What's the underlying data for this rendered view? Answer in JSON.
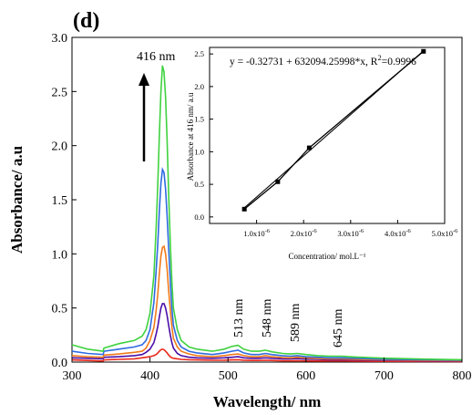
{
  "panel_label": "(d)",
  "chart_data": [
    {
      "type": "line",
      "xlabel": "Wavelength/ nm",
      "ylabel": "Absorbance/ a.u",
      "xlim": [
        300,
        800
      ],
      "ylim": [
        0,
        3.0
      ],
      "x_ticks": [
        300,
        400,
        500,
        600,
        700,
        800
      ],
      "y_ticks": [
        0.0,
        0.5,
        1.0,
        1.5,
        2.0,
        2.5,
        3.0
      ],
      "x_tick_labels": [
        "300",
        "400",
        "500",
        "600",
        "700",
        "800"
      ],
      "y_tick_labels": [
        "0.0",
        "0.5",
        "1.0",
        "1.5",
        "2.0",
        "2.5",
        "3.0"
      ],
      "grid": false,
      "x": [
        300,
        320,
        340,
        341,
        360,
        380,
        390,
        395,
        400,
        405,
        408,
        410,
        412,
        414,
        416,
        418,
        420,
        422,
        424,
        426,
        428,
        430,
        435,
        440,
        450,
        460,
        480,
        495,
        505,
        513,
        520,
        530,
        540,
        548,
        556,
        570,
        580,
        589,
        600,
        615,
        630,
        645,
        660,
        680,
        700,
        750,
        800
      ],
      "series": [
        {
          "color": "#e8281b",
          "values": [
            0.02,
            0.015,
            0.01,
            0.02,
            0.025,
            0.03,
            0.04,
            0.045,
            0.05,
            0.06,
            0.07,
            0.085,
            0.1,
            0.115,
            0.12,
            0.115,
            0.1,
            0.085,
            0.065,
            0.05,
            0.04,
            0.035,
            0.03,
            0.025,
            0.022,
            0.02,
            0.017,
            0.018,
            0.02,
            0.022,
            0.018,
            0.015,
            0.015,
            0.017,
            0.015,
            0.012,
            0.012,
            0.013,
            0.011,
            0.01,
            0.01,
            0.01,
            0.009,
            0.008,
            0.007,
            0.006,
            0.005
          ]
        },
        {
          "color": "#4b0fa8",
          "values": [
            0.04,
            0.035,
            0.03,
            0.045,
            0.05,
            0.06,
            0.07,
            0.09,
            0.12,
            0.18,
            0.26,
            0.33,
            0.42,
            0.5,
            0.54,
            0.54,
            0.5,
            0.43,
            0.34,
            0.25,
            0.18,
            0.13,
            0.08,
            0.06,
            0.045,
            0.04,
            0.035,
            0.04,
            0.045,
            0.05,
            0.04,
            0.035,
            0.035,
            0.04,
            0.035,
            0.03,
            0.03,
            0.032,
            0.028,
            0.025,
            0.022,
            0.022,
            0.02,
            0.017,
            0.015,
            0.012,
            0.01
          ]
        },
        {
          "color": "#f07a1a",
          "values": [
            0.06,
            0.05,
            0.045,
            0.065,
            0.075,
            0.09,
            0.1,
            0.13,
            0.2,
            0.32,
            0.48,
            0.63,
            0.82,
            0.98,
            1.06,
            1.07,
            1.0,
            0.86,
            0.66,
            0.48,
            0.33,
            0.22,
            0.14,
            0.1,
            0.075,
            0.06,
            0.05,
            0.06,
            0.07,
            0.075,
            0.06,
            0.05,
            0.05,
            0.06,
            0.05,
            0.042,
            0.04,
            0.045,
            0.038,
            0.033,
            0.03,
            0.03,
            0.027,
            0.023,
            0.02,
            0.016,
            0.013
          ]
        },
        {
          "color": "#2e6be0",
          "values": [
            0.1,
            0.08,
            0.07,
            0.1,
            0.12,
            0.14,
            0.16,
            0.2,
            0.3,
            0.55,
            0.85,
            1.1,
            1.4,
            1.65,
            1.78,
            1.75,
            1.6,
            1.35,
            1.05,
            0.75,
            0.5,
            0.34,
            0.2,
            0.14,
            0.1,
            0.085,
            0.07,
            0.085,
            0.1,
            0.11,
            0.085,
            0.07,
            0.07,
            0.08,
            0.07,
            0.058,
            0.055,
            0.06,
            0.05,
            0.045,
            0.04,
            0.04,
            0.036,
            0.031,
            0.027,
            0.021,
            0.017
          ]
        },
        {
          "color": "#3fd23f",
          "values": [
            0.16,
            0.12,
            0.1,
            0.13,
            0.17,
            0.2,
            0.24,
            0.3,
            0.45,
            0.8,
            1.25,
            1.65,
            2.1,
            2.5,
            2.74,
            2.68,
            2.45,
            2.05,
            1.55,
            1.1,
            0.75,
            0.5,
            0.3,
            0.2,
            0.14,
            0.12,
            0.1,
            0.12,
            0.145,
            0.155,
            0.12,
            0.1,
            0.1,
            0.11,
            0.095,
            0.08,
            0.075,
            0.08,
            0.07,
            0.06,
            0.055,
            0.055,
            0.048,
            0.042,
            0.036,
            0.028,
            0.022
          ]
        }
      ],
      "annotations": [
        {
          "text": "416 nm",
          "x": 416,
          "y": 2.74
        },
        {
          "text": "513 nm",
          "x": 513,
          "y": 0.16
        },
        {
          "text": "548 nm",
          "x": 548,
          "y": 0.11
        },
        {
          "text": "589 nm",
          "x": 589,
          "y": 0.08
        },
        {
          "text": "645 nm",
          "x": 645,
          "y": 0.055
        }
      ]
    },
    {
      "type": "scatter",
      "xlabel": "Concentration/ mol.L⁻¹",
      "ylabel": "Absorbance at 416 nm/ a.u",
      "xlim": [
        0,
        5e-06
      ],
      "ylim": [
        -0.1,
        2.6
      ],
      "x_ticks": [
        1e-06,
        2e-06,
        3e-06,
        4e-06,
        5e-06
      ],
      "y_ticks": [
        0.0,
        0.5,
        1.0,
        1.5,
        2.0,
        2.5
      ],
      "x_tick_labels": [
        {
          "mantissa": "1.0x10",
          "exp": "-6"
        },
        {
          "mantissa": "2.0x10",
          "exp": "-6"
        },
        {
          "mantissa": "3.0x10",
          "exp": "-6"
        },
        {
          "mantissa": "4.0x10",
          "exp": "-6"
        },
        {
          "mantissa": "5.0x10",
          "exp": "-6"
        }
      ],
      "y_tick_labels": [
        "0.0",
        "0.5",
        "1.0",
        "1.5",
        "2.0",
        "2.5"
      ],
      "points": [
        {
          "x": 7.4e-07,
          "y": 0.12
        },
        {
          "x": 1.45e-06,
          "y": 0.54
        },
        {
          "x": 2.12e-06,
          "y": 1.06
        },
        {
          "x": 4.55e-06,
          "y": 2.54
        }
      ],
      "fit": {
        "intercept": -0.32731,
        "slope": 632094.25998,
        "r2": 0.9996
      },
      "fit_label": {
        "main": "y = -0.32731 + 632094.25998*x, R",
        "sup": "2",
        "tail": "=0.9996"
      }
    }
  ]
}
